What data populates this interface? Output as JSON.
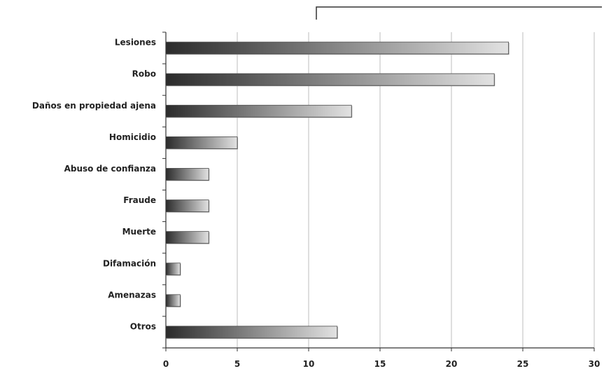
{
  "chart_data": {
    "type": "bar",
    "orientation": "horizontal",
    "categories": [
      "Lesiones",
      "Robo",
      "Daños en propiedad ajena",
      "Homicidio",
      "Abuso de confianza",
      "Fraude",
      "Muerte",
      "Difamación",
      "Amenazas",
      "Otros"
    ],
    "values": [
      24,
      23,
      13,
      5,
      3,
      3,
      3,
      1,
      1,
      12
    ],
    "xlim": [
      0,
      30
    ],
    "xticks": [
      "0",
      "5",
      "10",
      "15",
      "20",
      "25",
      "30"
    ],
    "grid": true,
    "bar_fill": "gradient dark-to-light",
    "colors": {
      "bar_dark": "#2b2b2b",
      "bar_light": "#e2e2e2",
      "grid": "#bdbdbd",
      "axis": "#333333"
    }
  }
}
